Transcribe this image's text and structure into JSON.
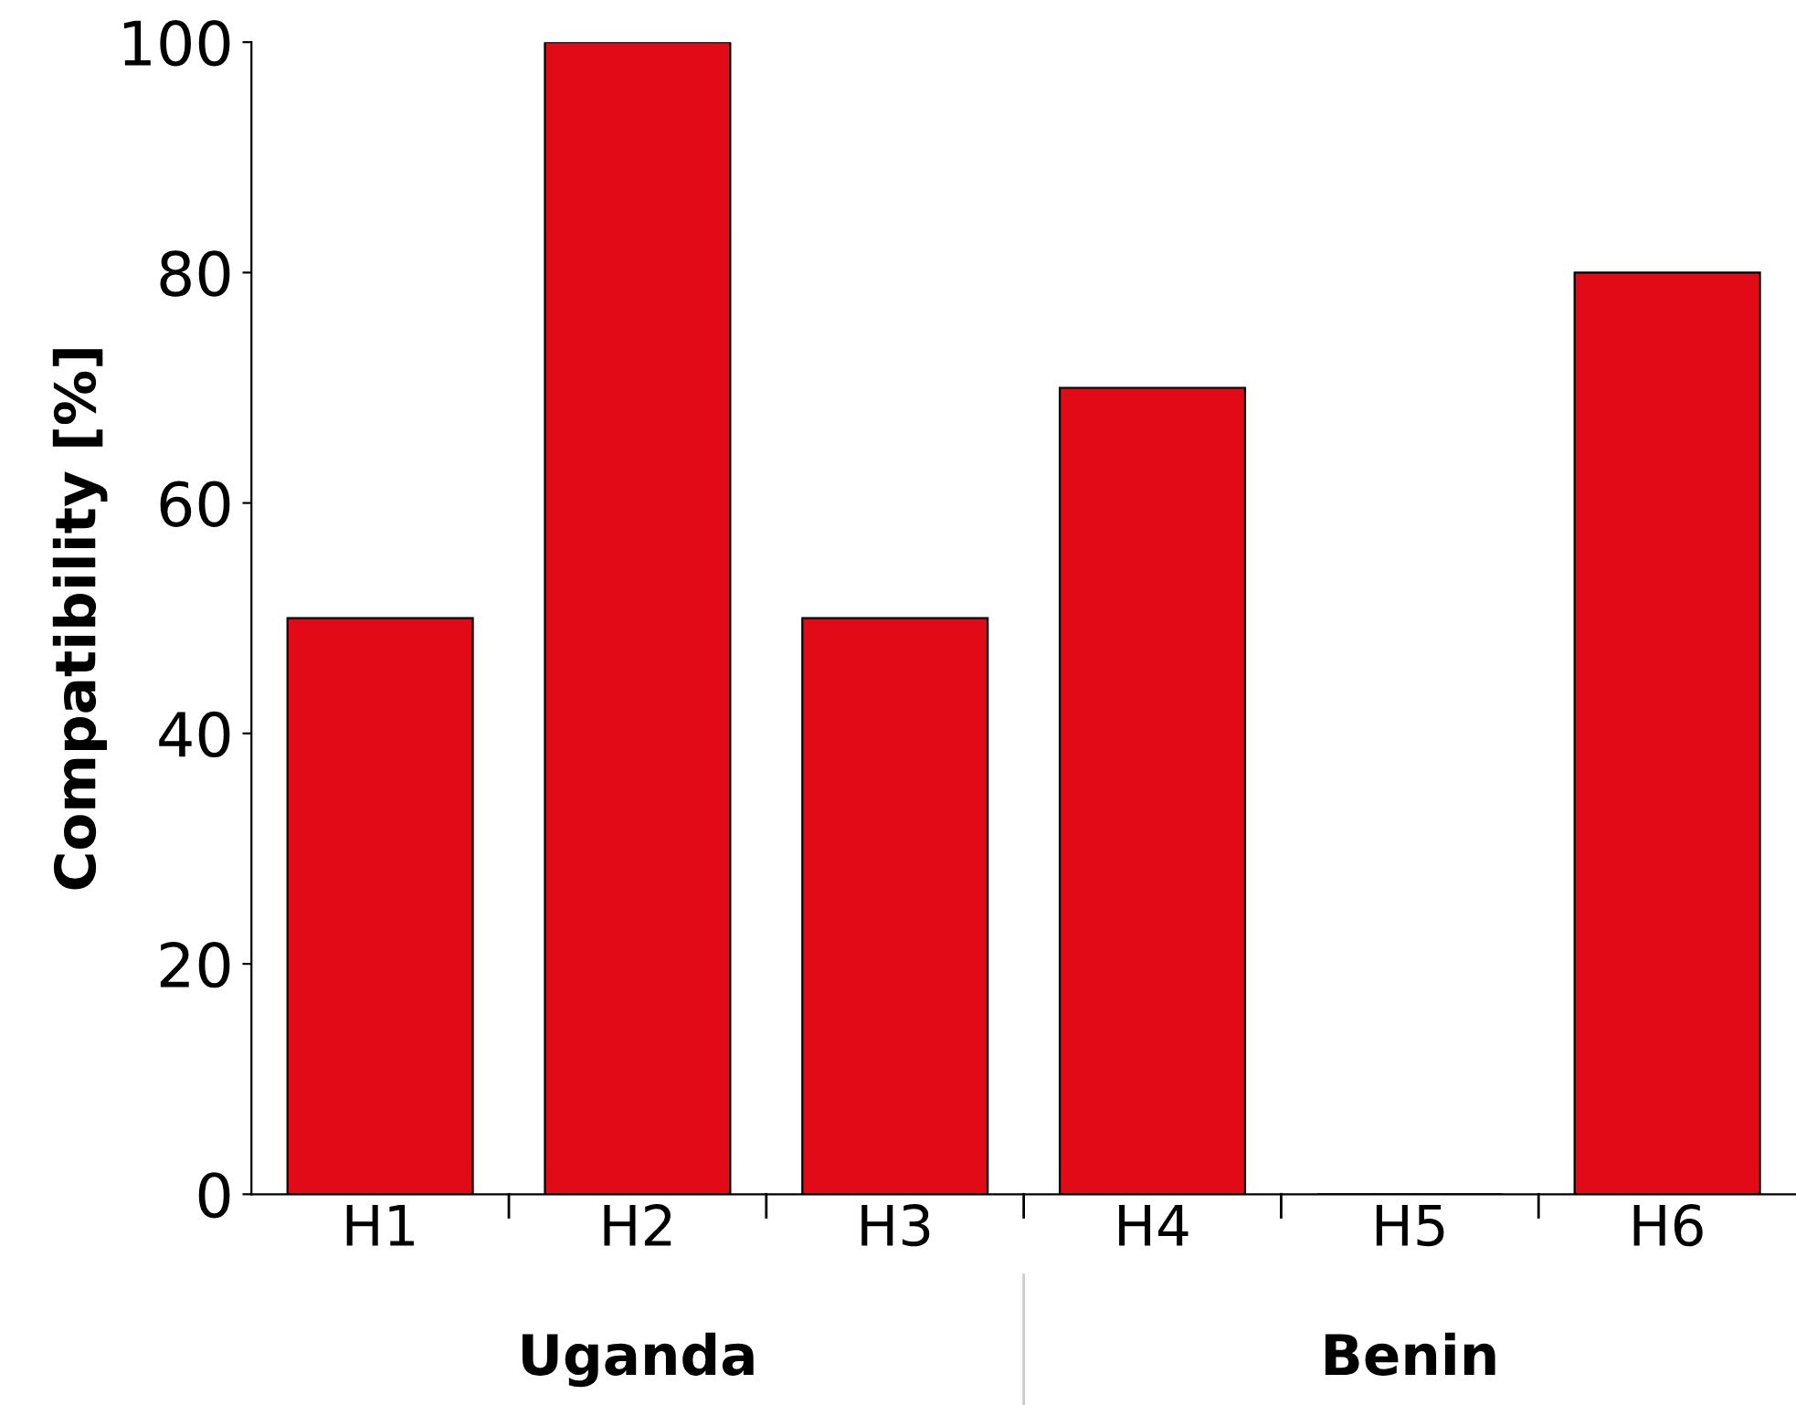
{
  "chart_data": {
    "type": "bar",
    "ylabel": "Compatibility [%]",
    "categories": [
      "H1",
      "H2",
      "H3",
      "H4",
      "H5",
      "H6"
    ],
    "values": [
      50,
      100,
      50,
      70,
      0,
      80
    ],
    "color": "#e20a16",
    "ylim": [
      0,
      100
    ],
    "yticks": [
      0,
      20,
      40,
      60,
      80,
      100
    ],
    "grid": false,
    "annotations": [
      "Uganda",
      "Benin"
    ]
  }
}
